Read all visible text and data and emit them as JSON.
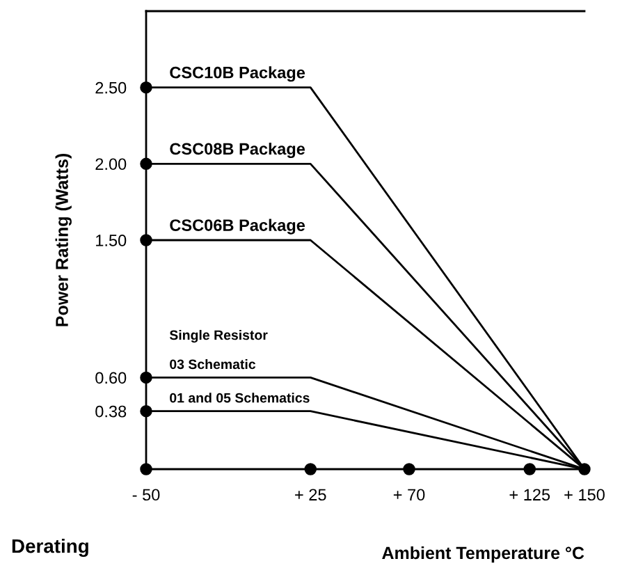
{
  "chart_data": {
    "type": "line",
    "xlabel": "Ambient Temperature °C",
    "ylabel": "Power Rating (Watts)",
    "annotations": [
      "Derating"
    ],
    "xlim": [
      -50,
      150
    ],
    "ylim": [
      0,
      3.0
    ],
    "xticks": [
      {
        "value": -50,
        "label": "- 50"
      },
      {
        "value": 25,
        "label": "+ 25"
      },
      {
        "value": 70,
        "label": "+ 70"
      },
      {
        "value": 125,
        "label": "+ 125"
      },
      {
        "value": 150,
        "label": "+ 150"
      }
    ],
    "yticks": [
      {
        "value": 0,
        "label": null
      },
      {
        "value": 0.38,
        "label": "0.38"
      },
      {
        "value": 0.6,
        "label": "0.60"
      },
      {
        "value": 1.5,
        "label": "1.50"
      },
      {
        "value": 2.0,
        "label": "2.00"
      },
      {
        "value": 2.5,
        "label": "2.50"
      }
    ],
    "grid": false,
    "marker": "none",
    "line_style": "solid",
    "legend": false,
    "series": [
      {
        "name": "CSC10B Package",
        "color": "#000000",
        "x": [
          -50,
          25,
          150
        ],
        "values": [
          2.5,
          2.5,
          0
        ]
      },
      {
        "name": "CSC08B Package",
        "color": "#000000",
        "x": [
          -50,
          25,
          150
        ],
        "values": [
          2.0,
          2.0,
          0
        ]
      },
      {
        "name": "CSC06B Package",
        "color": "#000000",
        "x": [
          -50,
          25,
          150
        ],
        "values": [
          1.5,
          1.5,
          0
        ]
      },
      {
        "name": "Single Resistor\n\n03 Schematic",
        "color": "#000000",
        "x": [
          -50,
          25,
          150
        ],
        "values": [
          0.6,
          0.6,
          0
        ]
      },
      {
        "name": "01 and 05 Schematics",
        "color": "#000000",
        "x": [
          -50,
          25,
          150
        ],
        "values": [
          0.38,
          0.38,
          0
        ]
      },
      {
        "type": "scatter",
        "marker": "circle",
        "color": "#000000",
        "x": [
          -50,
          25,
          70,
          125,
          150
        ],
        "values": [
          0,
          0,
          0,
          0,
          0
        ]
      },
      {
        "type": "scatter",
        "marker": "circle",
        "color": "#000000",
        "x": [
          -50,
          -50,
          -50,
          -50,
          -50
        ],
        "values": [
          0.38,
          0.6,
          1.5,
          2.0,
          2.5
        ]
      }
    ]
  }
}
